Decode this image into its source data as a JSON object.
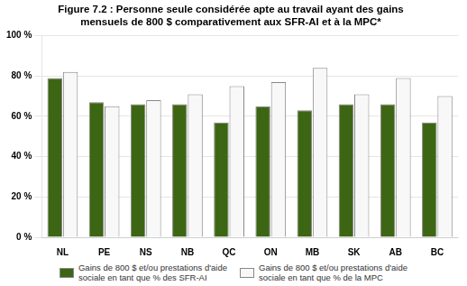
{
  "chart_data": {
    "type": "bar",
    "title": "Figure 7.2 : Personne seule considérée apte au travail ayant des gains\nmensuels de 800 $ comparativement aux SFR-AI et à la MPC*",
    "categories": [
      "NL",
      "PE",
      "NS",
      "NB",
      "QC",
      "ON",
      "MB",
      "SK",
      "AB",
      "BC"
    ],
    "series": [
      {
        "name": "Gains de 800 $ et/ou prestations d'aide\nsociale en tant que % des SFR-AI",
        "color": "#3d6614",
        "values": [
          79,
          67,
          66,
          66,
          57,
          65,
          63,
          66,
          66,
          57
        ]
      },
      {
        "name": "Gains de 800 $ et/ou prestations d'aide\nsociale en tant que % de la MPC",
        "color": "#f8f8f8",
        "values": [
          82,
          65,
          68,
          71,
          75,
          77,
          84,
          71,
          79,
          70
        ]
      }
    ],
    "ylim": [
      0,
      100
    ],
    "yticks": [
      {
        "value": 0,
        "label": "0 %"
      },
      {
        "value": 20,
        "label": "20 %"
      },
      {
        "value": 40,
        "label": "40 %"
      },
      {
        "value": 60,
        "label": "60 %"
      },
      {
        "value": 80,
        "label": "80 %"
      },
      {
        "value": 100,
        "label": "100 %"
      }
    ],
    "grid": true,
    "legend": "bottom"
  }
}
